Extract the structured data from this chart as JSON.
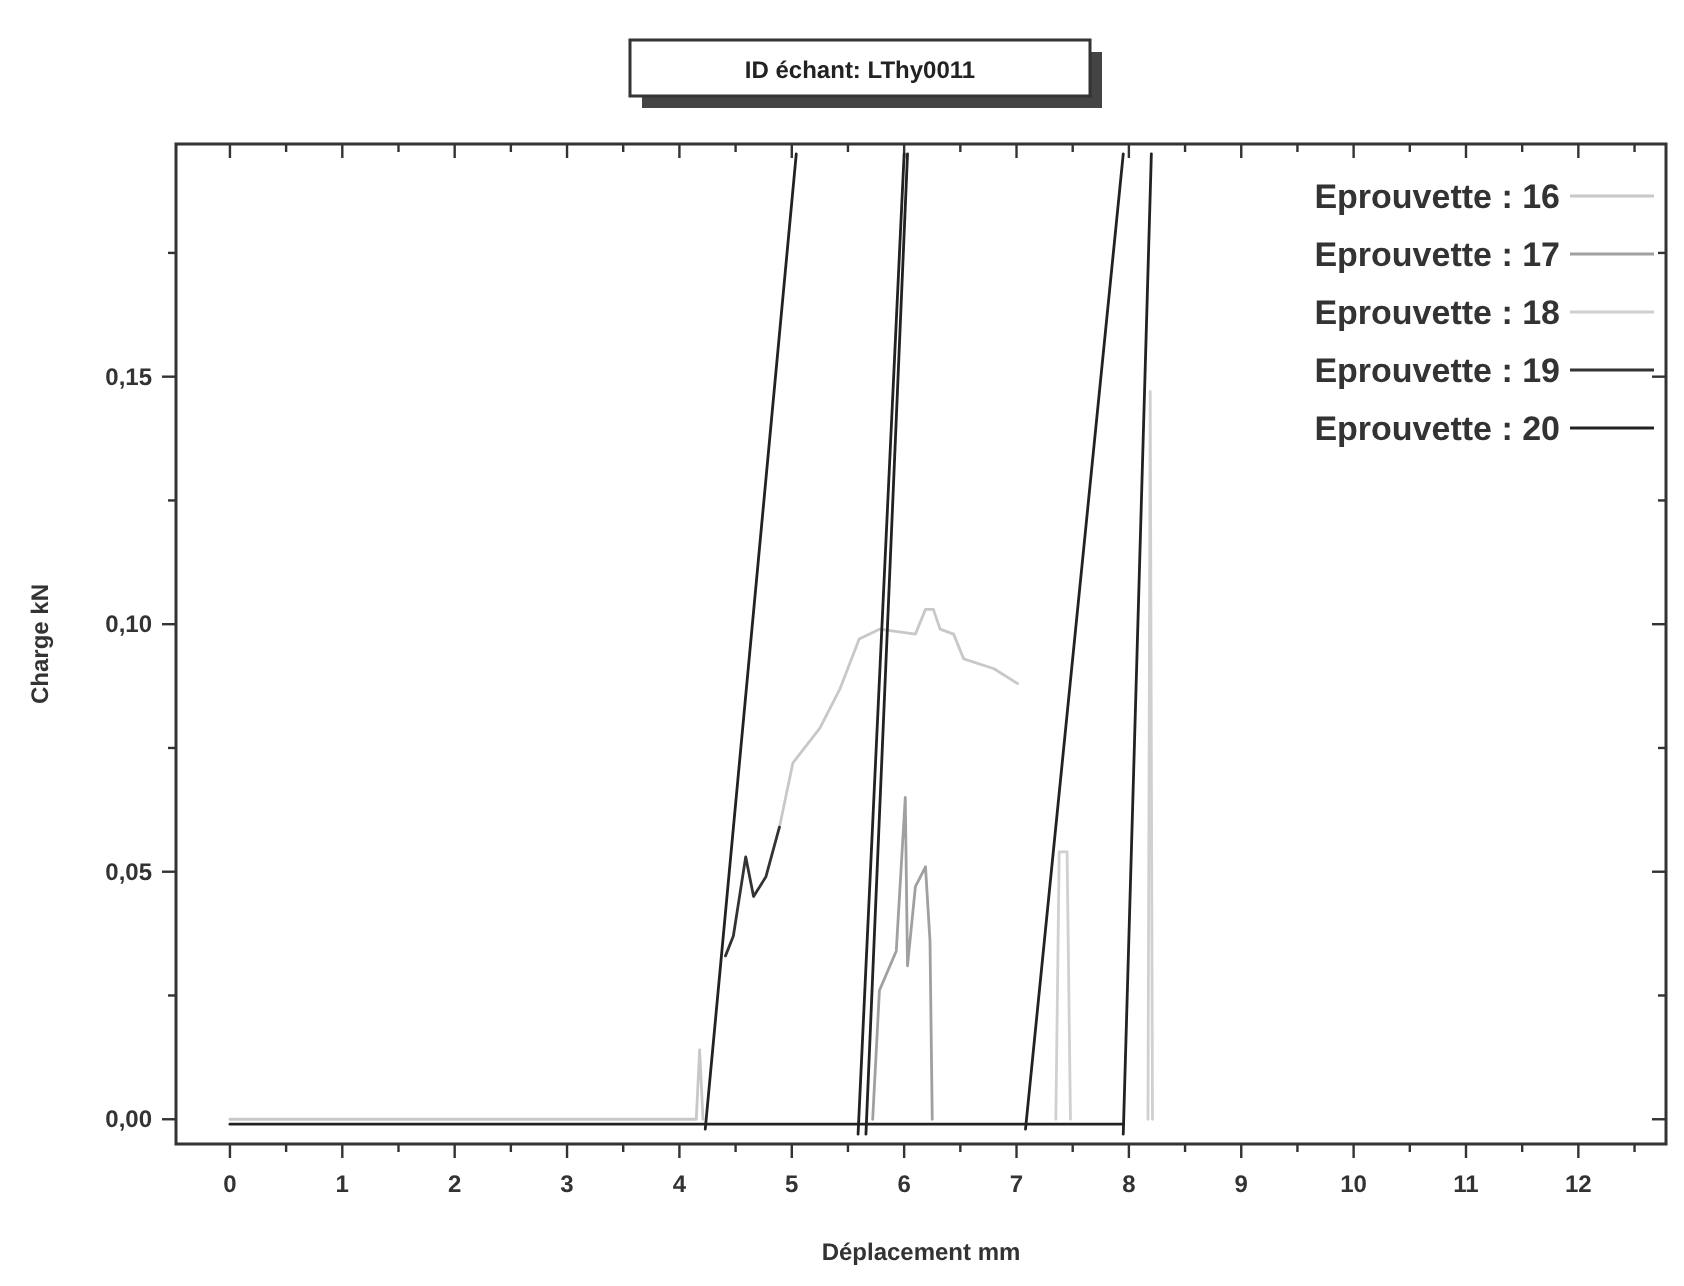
{
  "chart_data": {
    "type": "line",
    "title": "ID échant: LThy0011",
    "xlabel": "Déplacement mm",
    "ylabel": "Charge kN",
    "xlim": [
      -0.48,
      12.78
    ],
    "ylim": [
      -0.005,
      0.197
    ],
    "xticks": [
      0,
      {
        "value": 0.5,
        "label": null
      },
      1,
      {
        "value": 1.5,
        "label": null
      },
      2,
      {
        "value": 2.5,
        "label": null
      },
      3,
      {
        "value": 3.5,
        "label": null
      },
      4,
      {
        "value": 4.5,
        "label": null
      },
      5,
      {
        "value": 5.5,
        "label": null
      },
      6,
      {
        "value": 6.5,
        "label": null
      },
      7,
      {
        "value": 7.5,
        "label": null
      },
      8,
      {
        "value": 8.5,
        "label": null
      },
      9,
      {
        "value": 9.5,
        "label": null
      },
      10,
      {
        "value": 10.5,
        "label": null
      },
      11,
      {
        "value": 11.5,
        "label": null
      },
      12,
      {
        "value": 12.5,
        "label": null
      }
    ],
    "yticks": [
      {
        "value": 0,
        "label": "0,00"
      },
      {
        "value": 0.025,
        "label": null
      },
      {
        "value": 0.05,
        "label": "0,05"
      },
      {
        "value": 0.075,
        "label": null
      },
      {
        "value": 0.1,
        "label": "0,10"
      },
      {
        "value": 0.125,
        "label": null
      },
      {
        "value": 0.15,
        "label": "0,15"
      },
      {
        "value": 0.175,
        "label": null
      }
    ],
    "legend": "top right",
    "line_style": "solid",
    "series": [
      {
        "name": "Eprouvette : 16",
        "color": "#c8c8c8",
        "x": [
          4.89,
          5.01,
          5.25,
          5.43,
          5.6,
          5.78,
          6.1,
          6.19,
          6.26,
          6.32,
          6.44,
          6.53,
          6.8,
          7.01
        ],
        "values": [
          0.059,
          0.072,
          0.079,
          0.087,
          0.097,
          0.099,
          0.098,
          0.103,
          0.103,
          0.099,
          0.098,
          0.093,
          0.091,
          0.088
        ]
      },
      {
        "name": "Eprouvette : 17",
        "color": "#a0a0a0",
        "x": [
          5.72,
          5.78,
          5.93,
          6.01,
          6.03,
          6.1,
          6.19,
          6.23,
          6.25
        ],
        "values": [
          0,
          0.026,
          0.034,
          0.065,
          0.031,
          0.047,
          0.051,
          0.036,
          0
        ]
      },
      {
        "name": "Eprouvette : 18",
        "color": "#d0d0d0",
        "x": [
          7.35,
          7.38,
          7.45,
          7.48
        ],
        "values": [
          0,
          0.054,
          0.054,
          0
        ]
      },
      {
        "name": "Eprouvette : 19",
        "color": "#333333",
        "x": [
          4.41,
          4.48,
          4.59,
          4.66,
          4.77,
          4.89
        ],
        "values": [
          0.033,
          0.037,
          0.053,
          0.045,
          0.049,
          0.059
        ]
      },
      {
        "name": "Eprouvette : 20",
        "color": "#222222",
        "x": [
          0,
          7.95
        ],
        "values": [
          -0.001,
          -0.001
        ]
      },
      {
        "color": "#c8c8c8",
        "x": [
          0,
          4.15,
          4.18,
          4.21
        ],
        "values": [
          0,
          0,
          0.014,
          0
        ]
      },
      {
        "color": "#d0d0d0",
        "x": [
          8.17,
          8.19,
          8.21
        ],
        "values": [
          0,
          0.147,
          0
        ]
      },
      {
        "color": "#222222",
        "x": [
          4.23,
          5.04
        ],
        "values": [
          -0.002,
          0.195
        ]
      },
      {
        "color": "#222222",
        "x": [
          5.59,
          6.0
        ],
        "values": [
          -0.003,
          0.195
        ]
      },
      {
        "color": "#222222",
        "x": [
          5.66,
          6.03
        ],
        "values": [
          -0.003,
          0.195
        ]
      },
      {
        "color": "#222222",
        "x": [
          7.08,
          7.95
        ],
        "values": [
          -0.002,
          0.195
        ]
      },
      {
        "color": "#222222",
        "x": [
          7.95,
          8.2
        ],
        "values": [
          -0.003,
          0.195
        ]
      }
    ]
  }
}
